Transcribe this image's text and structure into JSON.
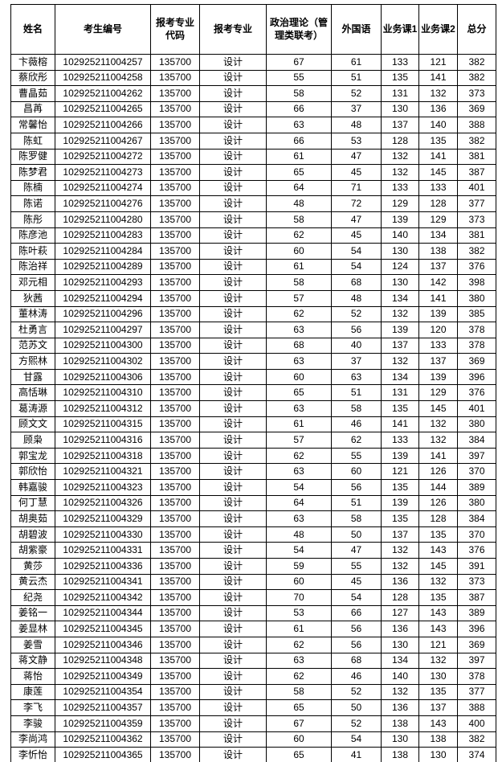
{
  "page": {
    "background_color": "#ffffff",
    "grid_color": "#000000",
    "text_color": "#000000"
  },
  "table": {
    "headers": [
      "姓名",
      "考生编号",
      "报考专业代码",
      "报考专业",
      "政治理论（管理类联考）",
      "外国语",
      "业务课1",
      "业务课2",
      "总分"
    ],
    "column_keys": [
      "name",
      "candidate_id",
      "major_code",
      "major",
      "politics",
      "foreign_language",
      "course1",
      "course2",
      "total"
    ],
    "rows": [
      [
        "卞薇榕",
        "102925211004257",
        "135700",
        "设计",
        67,
        61,
        133,
        121,
        382
      ],
      [
        "蔡欣彤",
        "102925211004258",
        "135700",
        "设计",
        55,
        51,
        135,
        141,
        382
      ],
      [
        "曹晶茹",
        "102925211004262",
        "135700",
        "设计",
        58,
        52,
        131,
        132,
        373
      ],
      [
        "昌苒",
        "102925211004265",
        "135700",
        "设计",
        66,
        37,
        130,
        136,
        369
      ],
      [
        "常馨怡",
        "102925211004266",
        "135700",
        "设计",
        63,
        48,
        137,
        140,
        388
      ],
      [
        "陈虹",
        "102925211004267",
        "135700",
        "设计",
        66,
        53,
        128,
        135,
        382
      ],
      [
        "陈罗健",
        "102925211004272",
        "135700",
        "设计",
        61,
        47,
        132,
        141,
        381
      ],
      [
        "陈梦君",
        "102925211004273",
        "135700",
        "设计",
        65,
        45,
        132,
        145,
        387
      ],
      [
        "陈楠",
        "102925211004274",
        "135700",
        "设计",
        64,
        71,
        133,
        133,
        401
      ],
      [
        "陈诺",
        "102925211004276",
        "135700",
        "设计",
        48,
        72,
        129,
        128,
        377
      ],
      [
        "陈彤",
        "102925211004280",
        "135700",
        "设计",
        58,
        47,
        139,
        129,
        373
      ],
      [
        "陈彦池",
        "102925211004283",
        "135700",
        "设计",
        62,
        45,
        140,
        134,
        381
      ],
      [
        "陈叶萩",
        "102925211004284",
        "135700",
        "设计",
        60,
        54,
        130,
        138,
        382
      ],
      [
        "陈治祥",
        "102925211004289",
        "135700",
        "设计",
        61,
        54,
        124,
        137,
        376
      ],
      [
        "邓元相",
        "102925211004293",
        "135700",
        "设计",
        58,
        68,
        130,
        142,
        398
      ],
      [
        "狄茜",
        "102925211004294",
        "135700",
        "设计",
        57,
        48,
        134,
        141,
        380
      ],
      [
        "董林涛",
        "102925211004296",
        "135700",
        "设计",
        62,
        52,
        132,
        139,
        385
      ],
      [
        "杜勇言",
        "102925211004297",
        "135700",
        "设计",
        63,
        56,
        139,
        120,
        378
      ],
      [
        "范苏文",
        "102925211004300",
        "135700",
        "设计",
        68,
        40,
        137,
        133,
        378
      ],
      [
        "方熙林",
        "102925211004302",
        "135700",
        "设计",
        63,
        37,
        132,
        137,
        369
      ],
      [
        "甘露",
        "102925211004306",
        "135700",
        "设计",
        60,
        63,
        134,
        139,
        396
      ],
      [
        "高恬琳",
        "102925211004310",
        "135700",
        "设计",
        65,
        51,
        131,
        129,
        376
      ],
      [
        "葛涛源",
        "102925211004312",
        "135700",
        "设计",
        63,
        58,
        135,
        145,
        401
      ],
      [
        "顾文文",
        "102925211004315",
        "135700",
        "设计",
        61,
        46,
        141,
        132,
        380
      ],
      [
        "顾枭",
        "102925211004316",
        "135700",
        "设计",
        57,
        62,
        133,
        132,
        384
      ],
      [
        "郭宝龙",
        "102925211004318",
        "135700",
        "设计",
        62,
        55,
        139,
        141,
        397
      ],
      [
        "郭欣怡",
        "102925211004321",
        "135700",
        "设计",
        63,
        60,
        121,
        126,
        370
      ],
      [
        "韩嘉骏",
        "102925211004323",
        "135700",
        "设计",
        54,
        56,
        135,
        144,
        389
      ],
      [
        "何丁慧",
        "102925211004326",
        "135700",
        "设计",
        64,
        51,
        139,
        126,
        380
      ],
      [
        "胡奥茹",
        "102925211004329",
        "135700",
        "设计",
        63,
        58,
        135,
        128,
        384
      ],
      [
        "胡碧波",
        "102925211004330",
        "135700",
        "设计",
        48,
        50,
        137,
        135,
        370
      ],
      [
        "胡紫豪",
        "102925211004331",
        "135700",
        "设计",
        54,
        47,
        132,
        143,
        376
      ],
      [
        "黄莎",
        "102925211004336",
        "135700",
        "设计",
        59,
        55,
        132,
        145,
        391
      ],
      [
        "黄云杰",
        "102925211004341",
        "135700",
        "设计",
        60,
        45,
        136,
        132,
        373
      ],
      [
        "纪尧",
        "102925211004342",
        "135700",
        "设计",
        70,
        54,
        128,
        135,
        387
      ],
      [
        "姜铭一",
        "102925211004344",
        "135700",
        "设计",
        53,
        66,
        127,
        143,
        389
      ],
      [
        "姜显林",
        "102925211004345",
        "135700",
        "设计",
        61,
        56,
        136,
        143,
        396
      ],
      [
        "姜雪",
        "102925211004346",
        "135700",
        "设计",
        62,
        56,
        130,
        121,
        369
      ],
      [
        "蒋文静",
        "102925211004348",
        "135700",
        "设计",
        63,
        68,
        134,
        132,
        397
      ],
      [
        "蒋怡",
        "102925211004349",
        "135700",
        "设计",
        62,
        46,
        140,
        130,
        378
      ],
      [
        "康莲",
        "102925211004354",
        "135700",
        "设计",
        58,
        52,
        132,
        135,
        377
      ],
      [
        "李飞",
        "102925211004357",
        "135700",
        "设计",
        65,
        50,
        136,
        137,
        388
      ],
      [
        "李骏",
        "102925211004359",
        "135700",
        "设计",
        67,
        52,
        138,
        143,
        400
      ],
      [
        "李尚鸿",
        "102925211004362",
        "135700",
        "设计",
        60,
        54,
        130,
        138,
        382
      ],
      [
        "李忻怡",
        "102925211004365",
        "135700",
        "设计",
        65,
        41,
        138,
        130,
        374
      ]
    ]
  }
}
